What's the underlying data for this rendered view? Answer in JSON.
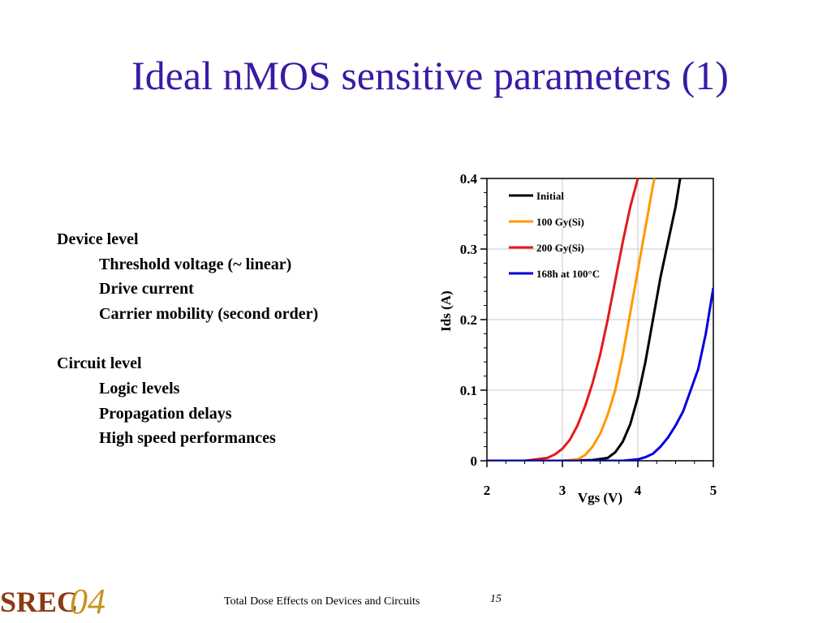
{
  "slide": {
    "title": "Ideal nMOS sensitive parameters (1)",
    "device_heading": "Device level",
    "device_items": [
      "Threshold voltage (~ linear)",
      "Drive current",
      "Carrier mobility (second order)"
    ],
    "circuit_heading": "Circuit level",
    "circuit_items": [
      "Logic levels",
      "Propagation delays",
      "High speed performances"
    ],
    "footer": "Total Dose Effects on Devices and Circuits",
    "page_number": "15",
    "logo_text": "SREC04"
  },
  "chart_data": {
    "type": "line",
    "xlabel": "Vgs (V)",
    "ylabel": "Ids (A)",
    "xlim": [
      2,
      5
    ],
    "ylim": [
      0,
      0.4
    ],
    "xticks": [
      "2",
      "3",
      "4",
      "5"
    ],
    "yticks": [
      "0",
      "0.1",
      "0.2",
      "0.3",
      "0.4"
    ],
    "grid": true,
    "legend_position": "top-left",
    "series": [
      {
        "name": "Initial",
        "color": "#000000",
        "x": [
          2,
          3.0,
          3.4,
          3.6,
          3.7,
          3.8,
          3.9,
          4.0,
          4.1,
          4.2,
          4.3,
          4.4,
          4.5,
          4.56
        ],
        "y": [
          0,
          0,
          0.001,
          0.004,
          0.012,
          0.027,
          0.052,
          0.09,
          0.14,
          0.2,
          0.26,
          0.31,
          0.36,
          0.4
        ]
      },
      {
        "name": "100 Gy(Si)",
        "color": "#ff9900",
        "x": [
          2,
          3.0,
          3.2,
          3.3,
          3.4,
          3.5,
          3.6,
          3.7,
          3.8,
          3.9,
          4.0,
          4.1,
          4.2,
          4.22
        ],
        "y": [
          0,
          0,
          0.002,
          0.008,
          0.02,
          0.038,
          0.065,
          0.1,
          0.15,
          0.21,
          0.27,
          0.33,
          0.39,
          0.4
        ]
      },
      {
        "name": "200 Gy(Si)",
        "color": "#e31a1c",
        "x": [
          2,
          2.5,
          2.8,
          2.9,
          3.0,
          3.1,
          3.2,
          3.3,
          3.4,
          3.5,
          3.6,
          3.7,
          3.8,
          3.9,
          4.0
        ],
        "y": [
          0,
          0,
          0.004,
          0.009,
          0.017,
          0.03,
          0.05,
          0.077,
          0.11,
          0.15,
          0.2,
          0.255,
          0.31,
          0.36,
          0.4
        ]
      },
      {
        "name": "168h at 100°C",
        "color": "#0000dd",
        "x": [
          2,
          3.8,
          4.0,
          4.1,
          4.2,
          4.3,
          4.4,
          4.5,
          4.6,
          4.7,
          4.8,
          4.9,
          5.0
        ],
        "y": [
          0,
          0,
          0.002,
          0.005,
          0.01,
          0.02,
          0.033,
          0.05,
          0.07,
          0.1,
          0.13,
          0.18,
          0.245
        ]
      }
    ]
  }
}
